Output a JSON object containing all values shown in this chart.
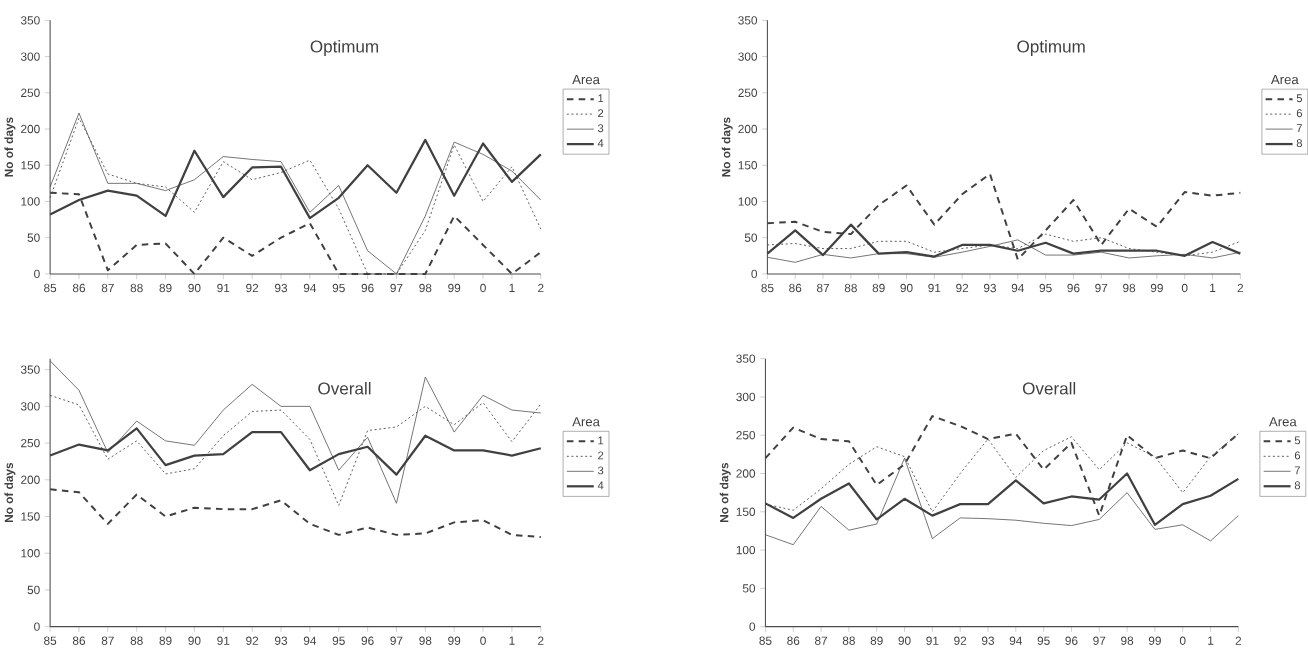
{
  "chart_data": [
    {
      "type": "line",
      "title": "Optimum",
      "ylabel": "No of days",
      "legend_title": "Area",
      "legend": "right",
      "grid": false,
      "ylim": [
        0,
        350
      ],
      "yticks": [
        0,
        50,
        100,
        150,
        200,
        250,
        300,
        350
      ],
      "categories": [
        "85",
        "86",
        "87",
        "88",
        "89",
        "90",
        "91",
        "92",
        "93",
        "94",
        "95",
        "96",
        "97",
        "98",
        "99",
        "0",
        "1",
        "2"
      ],
      "series": [
        {
          "name": "1",
          "color": "#404040",
          "line_style": "dashed",
          "values": [
            112,
            110,
            5,
            40,
            42,
            0,
            50,
            25,
            50,
            70,
            0,
            0,
            0,
            0,
            80,
            40,
            0,
            30
          ]
        },
        {
          "name": "2",
          "color": "#505050",
          "line_style": "dotted",
          "values": [
            105,
            215,
            138,
            125,
            120,
            85,
            155,
            130,
            140,
            157,
            90,
            0,
            0,
            60,
            178,
            100,
            148,
            62
          ]
        },
        {
          "name": "3",
          "color": "#505050",
          "line_style": "solid",
          "values": [
            120,
            222,
            125,
            125,
            115,
            130,
            162,
            158,
            155,
            85,
            122,
            32,
            0,
            80,
            182,
            165,
            142,
            102
          ]
        },
        {
          "name": "4",
          "color": "#404040",
          "line_style": "solid",
          "values": [
            82,
            102,
            115,
            108,
            80,
            170,
            106,
            147,
            148,
            77,
            105,
            150,
            112,
            185,
            108,
            180,
            127,
            165
          ]
        }
      ]
    },
    {
      "type": "line",
      "title": "Optimum",
      "ylabel": "No of days",
      "legend_title": "Area",
      "legend": "right",
      "grid": false,
      "ylim": [
        0,
        350
      ],
      "yticks": [
        0,
        50,
        100,
        150,
        200,
        250,
        300,
        350
      ],
      "categories": [
        "85",
        "86",
        "87",
        "88",
        "89",
        "90",
        "91",
        "92",
        "93",
        "94",
        "95",
        "96",
        "97",
        "98",
        "99",
        "0",
        "1",
        "2"
      ],
      "series": [
        {
          "name": "5",
          "color": "#404040",
          "line_style": "dashed",
          "values": [
            70,
            72,
            58,
            55,
            95,
            122,
            68,
            110,
            138,
            20,
            60,
            102,
            40,
            90,
            65,
            113,
            108,
            112
          ]
        },
        {
          "name": "6",
          "color": "#505050",
          "line_style": "dotted",
          "values": [
            40,
            42,
            35,
            35,
            45,
            45,
            30,
            35,
            40,
            35,
            55,
            45,
            50,
            35,
            30,
            25,
            30,
            45
          ]
        },
        {
          "name": "7",
          "color": "#505050",
          "line_style": "solid",
          "values": [
            23,
            16,
            27,
            22,
            28,
            28,
            23,
            30,
            38,
            47,
            26,
            26,
            30,
            22,
            25,
            27,
            22,
            30
          ]
        },
        {
          "name": "8",
          "color": "#404040",
          "line_style": "solid",
          "values": [
            28,
            60,
            26,
            68,
            28,
            30,
            24,
            40,
            40,
            32,
            43,
            28,
            32,
            32,
            32,
            25,
            44,
            28
          ]
        }
      ]
    },
    {
      "type": "line",
      "title": "Overall",
      "ylabel": "No of days",
      "legend_title": "Area",
      "legend": "right",
      "grid": false,
      "ylim": [
        0,
        365
      ],
      "yticks": [
        0,
        50,
        100,
        150,
        200,
        250,
        300,
        350
      ],
      "categories": [
        "85",
        "86",
        "87",
        "88",
        "89",
        "90",
        "91",
        "92",
        "93",
        "94",
        "95",
        "96",
        "97",
        "98",
        "99",
        "0",
        "1",
        "2"
      ],
      "series": [
        {
          "name": "1",
          "color": "#404040",
          "line_style": "dashed",
          "values": [
            187,
            183,
            140,
            180,
            150,
            162,
            160,
            160,
            172,
            140,
            125,
            135,
            125,
            127,
            142,
            145,
            125,
            122
          ]
        },
        {
          "name": "2",
          "color": "#505050",
          "line_style": "dotted",
          "values": [
            315,
            302,
            228,
            253,
            208,
            215,
            260,
            293,
            295,
            255,
            165,
            267,
            272,
            300,
            275,
            305,
            252,
            303
          ]
        },
        {
          "name": "3",
          "color": "#505050",
          "line_style": "solid",
          "values": [
            362,
            322,
            237,
            280,
            253,
            247,
            295,
            330,
            300,
            300,
            213,
            258,
            168,
            340,
            265,
            315,
            295,
            291
          ]
        },
        {
          "name": "4",
          "color": "#404040",
          "line_style": "solid",
          "values": [
            233,
            248,
            240,
            270,
            220,
            233,
            235,
            265,
            265,
            213,
            235,
            245,
            207,
            260,
            240,
            240,
            233,
            243
          ]
        }
      ]
    },
    {
      "type": "line",
      "title": "Overall",
      "ylabel": "No of days",
      "legend_title": "Area",
      "legend": "right",
      "grid": false,
      "ylim": [
        0,
        350
      ],
      "yticks": [
        0,
        50,
        100,
        150,
        200,
        250,
        300,
        350
      ],
      "categories": [
        "85",
        "86",
        "87",
        "88",
        "89",
        "90",
        "91",
        "92",
        "93",
        "94",
        "95",
        "96",
        "97",
        "98",
        "99",
        "0",
        "1",
        "2"
      ],
      "series": [
        {
          "name": "5",
          "color": "#404040",
          "line_style": "dashed",
          "values": [
            220,
            260,
            245,
            242,
            185,
            212,
            275,
            262,
            245,
            252,
            205,
            240,
            145,
            250,
            220,
            230,
            220,
            252
          ]
        },
        {
          "name": "6",
          "color": "#505050",
          "line_style": "dotted",
          "values": [
            160,
            152,
            180,
            212,
            235,
            222,
            150,
            200,
            245,
            195,
            230,
            248,
            205,
            240,
            222,
            175,
            222,
            252
          ]
        },
        {
          "name": "7",
          "color": "#505050",
          "line_style": "solid",
          "values": [
            120,
            107,
            157,
            126,
            134,
            220,
            115,
            142,
            141,
            139,
            135,
            132,
            140,
            175,
            127,
            133,
            112,
            145
          ]
        },
        {
          "name": "8",
          "color": "#404040",
          "line_style": "solid",
          "values": [
            161,
            142,
            167,
            187,
            140,
            167,
            145,
            160,
            160,
            191,
            161,
            170,
            166,
            200,
            133,
            160,
            171,
            193
          ]
        }
      ]
    }
  ]
}
